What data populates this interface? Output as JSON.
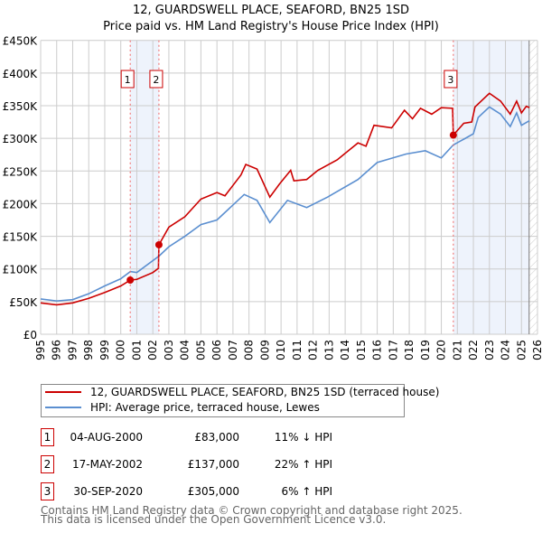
{
  "title": "12, GUARDSWELL PLACE, SEAFORD, BN25 1SD",
  "subtitle": "Price paid vs. HM Land Registry's House Price Index (HPI)",
  "chart_data": {
    "type": "line",
    "title": "12, GUARDSWELL PLACE, SEAFORD, BN25 1SD",
    "subtitle": "Price paid vs. HM Land Registry's House Price Index (HPI)",
    "xlim": [
      1995,
      2026
    ],
    "ylim": [
      0,
      450000
    ],
    "x_ticks": [
      "1995",
      "1996",
      "1997",
      "1998",
      "1999",
      "2000",
      "2001",
      "2002",
      "2003",
      "2004",
      "2005",
      "2006",
      "2007",
      "2008",
      "2009",
      "2010",
      "2011",
      "2012",
      "2013",
      "2014",
      "2015",
      "2016",
      "2017",
      "2018",
      "2019",
      "2020",
      "2021",
      "2022",
      "2023",
      "2024",
      "2025",
      "2026"
    ],
    "y_ticks": [
      {
        "v": 0,
        "label": "£0"
      },
      {
        "v": 50000,
        "label": "£50K"
      },
      {
        "v": 100000,
        "label": "£100K"
      },
      {
        "v": 150000,
        "label": "£150K"
      },
      {
        "v": 200000,
        "label": "£200K"
      },
      {
        "v": 250000,
        "label": "£250K"
      },
      {
        "v": 300000,
        "label": "£300K"
      },
      {
        "v": 350000,
        "label": "£350K"
      },
      {
        "v": 400000,
        "label": "£400K"
      },
      {
        "v": 450000,
        "label": "£450K"
      }
    ],
    "grid": true,
    "series": [
      {
        "name": "12, GUARDSWELL PLACE, SEAFORD, BN25 1SD (terraced house)",
        "color": "#cc0000",
        "x": [
          1995,
          1996,
          1997,
          1998,
          1999,
          2000,
          2000.6,
          2001,
          2002,
          2002.35,
          2002.38,
          2003,
          2004,
          2005,
          2006,
          2006.5,
          2007,
          2007.5,
          2007.8,
          2008.5,
          2009.3,
          2009.9,
          2010.6,
          2010.8,
          2011.6,
          2012.3,
          2013.5,
          2014.8,
          2015.3,
          2015.8,
          2016.9,
          2017.7,
          2018.2,
          2018.7,
          2019.4,
          2020,
          2020.7,
          2020.75,
          2021.4,
          2021.9,
          2022.1,
          2023,
          2023.7,
          2024.3,
          2024.7,
          2025,
          2025.3,
          2025.5
        ],
        "y": [
          48000,
          45000,
          48000,
          55000,
          64000,
          74000,
          83000,
          84000,
          94500,
          101000,
          137000,
          164000,
          180000,
          207000,
          217000,
          212000,
          228000,
          244000,
          260000,
          253000,
          210000,
          230000,
          251000,
          235000,
          237000,
          251000,
          267000,
          293000,
          288000,
          320000,
          316000,
          343000,
          330000,
          346000,
          337000,
          347000,
          346000,
          305000,
          323000,
          325000,
          348000,
          369000,
          357000,
          337000,
          357000,
          339000,
          349000,
          347000
        ]
      },
      {
        "name": "HPI: Average price, terraced house, Lewes",
        "color": "#5b8fd0",
        "x": [
          1995,
          1996,
          1997,
          1998,
          1999,
          2000,
          2000.6,
          2001,
          2002.4,
          2003,
          2004,
          2005,
          2006,
          2007.7,
          2008.5,
          2009.3,
          2010.4,
          2011.6,
          2012.9,
          2014.8,
          2016,
          2017.8,
          2019,
          2020,
          2020.75,
          2021.5,
          2022,
          2022.3,
          2023,
          2023.7,
          2024.3,
          2024.7,
          2025,
          2025.5
        ],
        "y": [
          54000,
          51000,
          53000,
          62000,
          74000,
          85000,
          96000,
          94500,
          120000,
          134000,
          150000,
          168000,
          175000,
          214000,
          205000,
          171000,
          205000,
          194000,
          210000,
          237000,
          263000,
          276000,
          281000,
          270000,
          290000,
          300000,
          307000,
          332000,
          348000,
          337000,
          318000,
          339000,
          320000,
          327000
        ]
      }
    ],
    "sales": [
      {
        "n": "1",
        "x": 2000.59,
        "price": 83000,
        "date": "04-AUG-2000",
        "amount": "£83,000",
        "hpi": "11% ↓ HPI"
      },
      {
        "n": "2",
        "x": 2002.38,
        "price": 137000,
        "date": "17-MAY-2002",
        "amount": "£137,000",
        "hpi": "22% ↑ HPI"
      },
      {
        "n": "3",
        "x": 2020.75,
        "price": 305000,
        "date": "30-SEP-2020",
        "amount": "£305,000",
        "hpi": "6% ↑ HPI"
      }
    ],
    "shaded": [
      [
        2000.59,
        2002.38
      ],
      [
        2020.75,
        2025.48
      ]
    ],
    "forecast_start": 2025.48
  },
  "legend": {
    "red": "12, GUARDSWELL PLACE, SEAFORD, BN25 1SD (terraced house)",
    "blue": "HPI: Average price, terraced house, Lewes"
  },
  "footer": {
    "line1": "Contains HM Land Registry data © Crown copyright and database right 2025.",
    "line2": "This data is licensed under the Open Government Licence v3.0."
  }
}
